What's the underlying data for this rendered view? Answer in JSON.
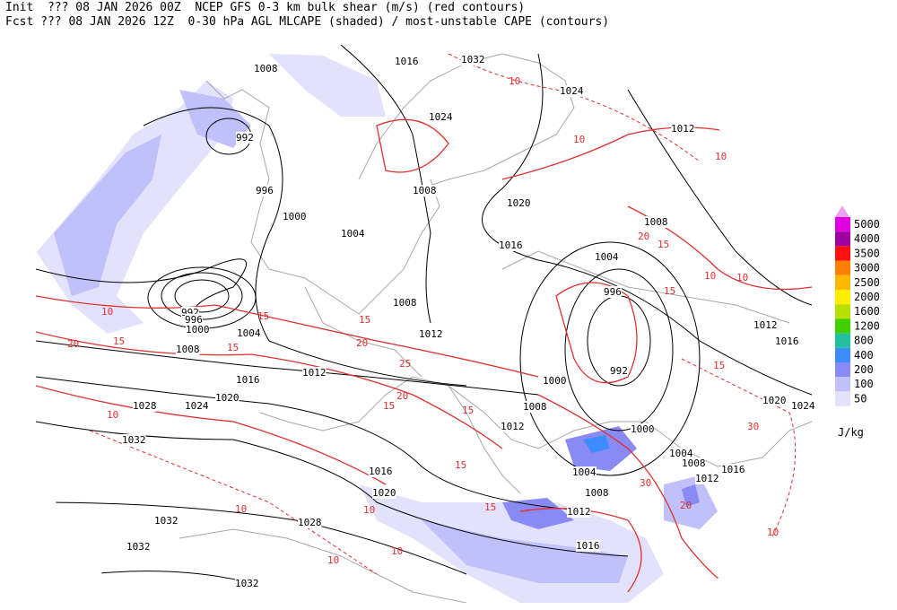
{
  "header": {
    "line1": "Init  ??? 08 JAN 2026 00Z  NCEP GFS 0-3 km bulk shear (m/s) (red contours)",
    "line2": "Fcst ??? 08 JAN 2026 12Z  0-30 hPa AGL MLCAPE (shaded) / most-unstable CAPE (contours)"
  },
  "colorbar": {
    "levels": [
      {
        "value": 5000,
        "color": "#e000e0"
      },
      {
        "value": 4000,
        "color": "#a000a0"
      },
      {
        "value": 3500,
        "color": "#ff1010"
      },
      {
        "value": 3000,
        "color": "#ff8000"
      },
      {
        "value": 2500,
        "color": "#ffb800"
      },
      {
        "value": 2000,
        "color": "#ffee00"
      },
      {
        "value": 1600,
        "color": "#b8e000"
      },
      {
        "value": 1200,
        "color": "#40d000"
      },
      {
        "value": 800,
        "color": "#20c0a0"
      },
      {
        "value": 400,
        "color": "#3c8cff"
      },
      {
        "value": 200,
        "color": "#8a8af4"
      },
      {
        "value": 100,
        "color": "#c0c0fa"
      },
      {
        "value": 50,
        "color": "#e2e2fc"
      }
    ],
    "unit": "J/kg"
  },
  "isobar_labels": [
    1008,
    1016,
    1032,
    1024,
    992,
    1024,
    1012,
    996,
    1008,
    1020,
    1000,
    1004,
    1016,
    1008,
    1004,
    996,
    992,
    996,
    1000,
    1004,
    1008,
    1012,
    1012,
    1016,
    1008,
    1012,
    1016,
    992,
    1000,
    1020,
    1028,
    1024,
    1008,
    1020,
    1024,
    1012,
    1000,
    1032,
    1004,
    1008,
    1016,
    1004,
    1016,
    1012,
    1020,
    1008,
    1012,
    1032,
    1028,
    1016,
    1032,
    1032
  ],
  "shear_labels": [
    10,
    20,
    15,
    15,
    15,
    15,
    20,
    20,
    15,
    15,
    25,
    15,
    10,
    10,
    20,
    15,
    15,
    30,
    20,
    30,
    15,
    15,
    10,
    10,
    10,
    10,
    10,
    10,
    10,
    10,
    10
  ]
}
